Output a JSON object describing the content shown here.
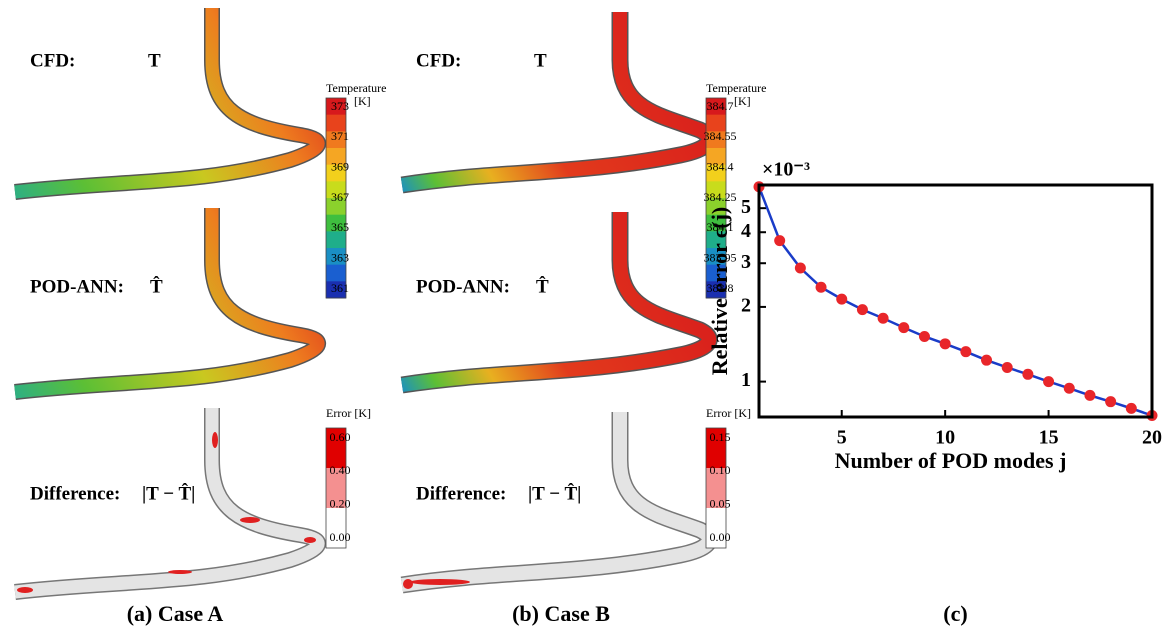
{
  "panels": [
    {
      "caption": "(a) Case A",
      "cfd_label": "CFD:",
      "cfd_symbol": "T",
      "pred_label": "POD-ANN:",
      "pred_symbol": "T̂",
      "diff_label": "Difference:",
      "diff_symbol": "|T − T̂|",
      "temperature_colorbar": {
        "title": "Temperature",
        "unit": "[K]",
        "ticks": [
          373,
          371,
          369,
          367,
          365,
          363,
          361
        ]
      },
      "error_colorbar": {
        "title": "Error [K]",
        "ticks": [
          "0.60",
          "0.40",
          "0.20",
          "0.00"
        ]
      }
    },
    {
      "caption": "(b) Case B",
      "cfd_label": "CFD:",
      "cfd_symbol": "T",
      "pred_label": "POD-ANN:",
      "pred_symbol": "T̂",
      "diff_label": "Difference:",
      "diff_symbol": "|T − T̂|",
      "temperature_colorbar": {
        "title": "Temperature",
        "unit": "[K]",
        "ticks": [
          384.7,
          384.55,
          384.4,
          384.25,
          384.1,
          383.95,
          383.8
        ]
      },
      "error_colorbar": {
        "title": "Error [K]",
        "ticks": [
          "0.15",
          "0.10",
          "0.05",
          "0.00"
        ]
      }
    }
  ],
  "chart_data": {
    "type": "line",
    "caption": "(c)",
    "xlabel": "Number of POD modes j",
    "ylabel": "Relative error ϵ(j)",
    "y_multiplier": "×10⁻³",
    "x": [
      1,
      2,
      3,
      4,
      5,
      6,
      7,
      8,
      9,
      10,
      11,
      12,
      13,
      14,
      15,
      16,
      17,
      18,
      19,
      20
    ],
    "values": [
      6.1,
      3.7,
      2.87,
      2.4,
      2.15,
      1.95,
      1.8,
      1.65,
      1.52,
      1.42,
      1.32,
      1.22,
      1.14,
      1.07,
      1.0,
      0.94,
      0.88,
      0.83,
      0.78,
      0.73
    ],
    "color": "#1a3cc8",
    "marker_color": "#e8262a",
    "xlim": [
      1,
      20
    ],
    "ylim": [
      0.72,
      6.2
    ],
    "xticks": [
      5,
      10,
      15,
      20
    ],
    "yticks": [
      1,
      2,
      3,
      4,
      5
    ],
    "yscale": "log"
  }
}
